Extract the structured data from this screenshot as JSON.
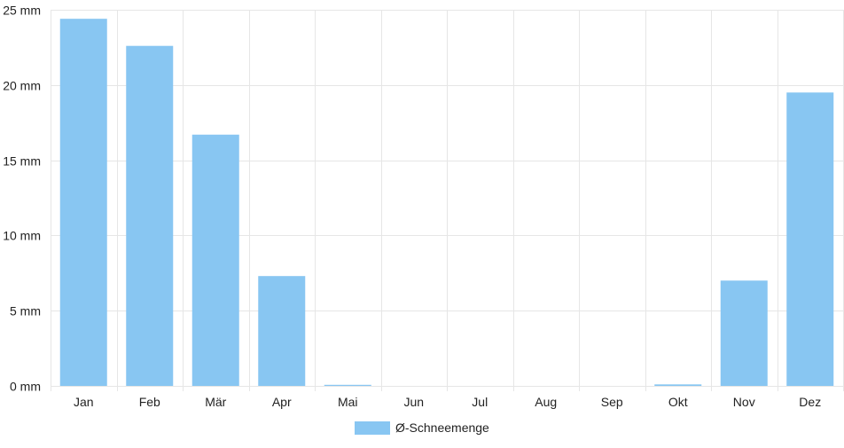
{
  "chart_data": {
    "type": "bar",
    "categories": [
      "Jan",
      "Feb",
      "Mär",
      "Apr",
      "Mai",
      "Jun",
      "Jul",
      "Aug",
      "Sep",
      "Okt",
      "Nov",
      "Dez"
    ],
    "series": [
      {
        "name": "Ø-Schneemenge",
        "values": [
          24.4,
          22.6,
          16.7,
          7.3,
          0.05,
          0,
          0,
          0,
          0,
          0.1,
          7.0,
          19.5
        ],
        "color": "#88c6f2"
      }
    ],
    "ylim": [
      0,
      25
    ],
    "yticks": [
      0,
      5,
      10,
      15,
      20,
      25
    ],
    "y_unit": "mm",
    "ytick_labels": [
      "0 mm",
      "5 mm",
      "10 mm",
      "15 mm",
      "20 mm",
      "25 mm"
    ],
    "grid": true,
    "legend_position": "bottom"
  }
}
